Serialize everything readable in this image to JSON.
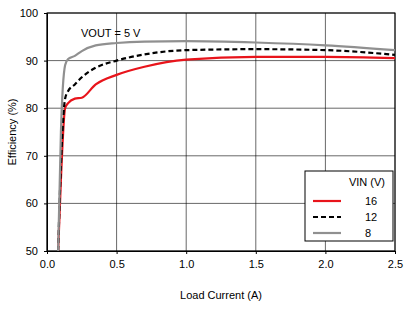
{
  "chart_data": {
    "type": "line",
    "x_label": "Load Current (A)",
    "y_label": "Efficiency (%)",
    "annotation": "VOUT = 5 V",
    "legend_title": "VIN (V)",
    "legend": "lower right",
    "grid": true,
    "x": [
      0.08,
      0.1,
      0.13,
      0.15,
      0.2,
      0.25,
      0.35,
      0.5,
      0.7,
      1.0,
      1.5,
      2.0,
      2.5
    ],
    "series": [
      {
        "name": "16",
        "color": "#e8141b",
        "line_style": "solid",
        "values": [
          50,
          65,
          80,
          81,
          82,
          82.2,
          85,
          87,
          88.7,
          90.2,
          90.8,
          90.8,
          90.5
        ]
      },
      {
        "name": "12",
        "color": "#000000",
        "line_style": "dashed",
        "values": [
          50,
          68,
          82,
          83.5,
          85,
          86.5,
          88.5,
          90,
          91.3,
          92.2,
          92.4,
          92.2,
          91.2
        ]
      },
      {
        "name": "8",
        "color": "#909090",
        "line_style": "solid",
        "values": [
          50,
          75,
          89,
          90.3,
          91,
          92,
          93.2,
          93.7,
          94,
          94.1,
          93.8,
          93.2,
          92.2
        ]
      }
    ],
    "xlim": [
      0,
      2.5
    ],
    "xticks": [
      {
        "value": 0,
        "label": "0.0"
      },
      0.5,
      {
        "value": 1,
        "label": "1.0"
      },
      1.5,
      {
        "value": 2,
        "label": "2.0"
      },
      2.5
    ],
    "ylim": [
      50,
      100
    ],
    "yticks": [
      50,
      60,
      70,
      80,
      90,
      100
    ]
  }
}
